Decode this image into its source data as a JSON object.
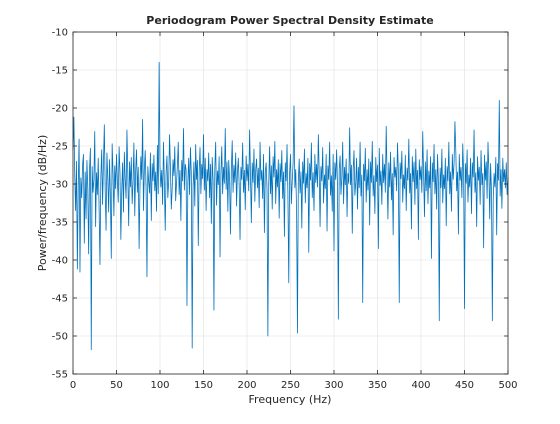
{
  "chart_data": {
    "type": "line",
    "title": "Periodogram Power Spectral Density Estimate",
    "xlabel": "Frequency (Hz)",
    "ylabel": "Power/frequency (dB/Hz)",
    "xlim": [
      0,
      500
    ],
    "ylim": [
      -55,
      -10
    ],
    "xticks": [
      0,
      50,
      100,
      150,
      200,
      250,
      300,
      350,
      400,
      450,
      500
    ],
    "yticks": [
      -55,
      -50,
      -45,
      -40,
      -35,
      -30,
      -25,
      -20,
      -15,
      -10
    ],
    "grid": true,
    "line_color": "#0072BD",
    "series": [
      {
        "x": [
          0,
          1,
          2,
          3,
          4,
          5,
          6,
          7,
          8,
          9,
          10,
          11,
          12,
          13,
          14,
          15,
          16,
          17,
          18,
          19,
          20,
          21,
          22,
          23,
          24,
          25,
          26,
          27,
          28,
          29,
          30,
          31,
          32,
          33,
          34,
          35,
          36,
          37,
          38,
          39,
          40,
          41,
          42,
          43,
          44,
          45,
          46,
          47,
          48,
          49,
          50,
          51,
          52,
          53,
          54,
          55,
          56,
          57,
          58,
          59,
          60,
          61,
          62,
          63,
          64,
          65,
          66,
          67,
          68,
          69,
          70,
          71,
          72,
          73,
          74,
          75,
          76,
          77,
          78,
          79,
          80,
          81,
          82,
          83,
          84,
          85,
          86,
          87,
          88,
          89,
          90,
          91,
          92,
          93,
          94,
          95,
          96,
          97,
          98,
          99,
          100,
          101,
          102,
          103,
          104,
          105,
          106,
          107,
          108,
          109,
          110,
          111,
          112,
          113,
          114,
          115,
          116,
          117,
          118,
          119,
          120,
          121,
          122,
          123,
          124,
          125,
          126,
          127,
          128,
          129,
          130,
          131,
          132,
          133,
          134,
          135,
          136,
          137,
          138,
          139,
          140,
          141,
          142,
          143,
          144,
          145,
          146,
          147,
          148,
          149,
          150,
          151,
          152,
          153,
          154,
          155,
          156,
          157,
          158,
          159,
          160,
          161,
          162,
          163,
          164,
          165,
          166,
          167,
          168,
          169,
          170,
          171,
          172,
          173,
          174,
          175,
          176,
          177,
          178,
          179,
          180,
          181,
          182,
          183,
          184,
          185,
          186,
          187,
          188,
          189,
          190,
          191,
          192,
          193,
          194,
          195,
          196,
          197,
          198,
          199,
          200,
          201,
          202,
          203,
          204,
          205,
          206,
          207,
          208,
          209,
          210,
          211,
          212,
          213,
          214,
          215,
          216,
          217,
          218,
          219,
          220,
          221,
          222,
          223,
          224,
          225,
          226,
          227,
          228,
          229,
          230,
          231,
          232,
          233,
          234,
          235,
          236,
          237,
          238,
          239,
          240,
          241,
          242,
          243,
          244,
          245,
          246,
          247,
          248,
          249,
          250,
          251,
          252,
          253,
          254,
          255,
          256,
          257,
          258,
          259,
          260,
          261,
          262,
          263,
          264,
          265,
          266,
          267,
          268,
          269,
          270,
          271,
          272,
          273,
          274,
          275,
          276,
          277,
          278,
          279,
          280,
          281,
          282,
          283,
          284,
          285,
          286,
          287,
          288,
          289,
          290,
          291,
          292,
          293,
          294,
          295,
          296,
          297,
          298,
          299,
          300,
          301,
          302,
          303,
          304,
          305,
          306,
          307,
          308,
          309,
          310,
          311,
          312,
          313,
          314,
          315,
          316,
          317,
          318,
          319,
          320,
          321,
          322,
          323,
          324,
          325,
          326,
          327,
          328,
          329,
          330,
          331,
          332,
          333,
          334,
          335,
          336,
          337,
          338,
          339,
          340,
          341,
          342,
          343,
          344,
          345,
          346,
          347,
          348,
          349,
          350,
          351,
          352,
          353,
          354,
          355,
          356,
          357,
          358,
          359,
          360,
          361,
          362,
          363,
          364,
          365,
          366,
          367,
          368,
          369,
          370,
          371,
          372,
          373,
          374,
          375,
          376,
          377,
          378,
          379,
          380,
          381,
          382,
          383,
          384,
          385,
          386,
          387,
          388,
          389,
          390,
          391,
          392,
          393,
          394,
          395,
          396,
          397,
          398,
          399,
          400,
          401,
          402,
          403,
          404,
          405,
          406,
          407,
          408,
          409,
          410,
          411,
          412,
          413,
          414,
          415,
          416,
          417,
          418,
          419,
          420,
          421,
          422,
          423,
          424,
          425,
          426,
          427,
          428,
          429,
          430,
          431,
          432,
          433,
          434,
          435,
          436,
          437,
          438,
          439,
          440,
          441,
          442,
          443,
          444,
          445,
          446,
          447,
          448,
          449,
          450,
          451,
          452,
          453,
          454,
          455,
          456,
          457,
          458,
          459,
          460,
          461,
          462,
          463,
          464,
          465,
          466,
          467,
          468,
          469,
          470,
          471,
          472,
          473,
          474,
          475,
          476,
          477,
          478,
          479,
          480,
          481,
          482,
          483,
          484,
          485,
          486,
          487,
          488,
          489,
          490,
          491,
          492,
          493,
          494,
          495,
          496,
          497,
          498,
          499,
          500
        ],
        "y": [
          -25.5,
          -21.2,
          -28.8,
          -33.5,
          -27.0,
          -41.2,
          -30.3,
          -24.1,
          -41.6,
          -29.2,
          -31.8,
          -27.5,
          -26.1,
          -37.8,
          -28.4,
          -34.6,
          -26.9,
          -30.7,
          -39.2,
          -28.1,
          -25.3,
          -51.8,
          -27.7,
          -31.1,
          -29.4,
          -23.1,
          -35.6,
          -28.5,
          -31.4,
          -26.6,
          -33.2,
          -40.6,
          -29.1,
          -25.5,
          -32.7,
          -27.3,
          -22.2,
          -30.8,
          -36.1,
          -25.9,
          -29.3,
          -33.7,
          -26.8,
          -31.6,
          -39.8,
          -24.7,
          -28.5,
          -34.2,
          -27.6,
          -30.6,
          -26.1,
          -29.6,
          -32.4,
          -25.1,
          -28.5,
          -37.3,
          -30.9,
          -27.2,
          -33.7,
          -25.8,
          -29.4,
          -31.9,
          -22.9,
          -28.7,
          -35.5,
          -27.1,
          -30.4,
          -26.5,
          -32.6,
          -29.8,
          -24.6,
          -34.2,
          -28.3,
          -25.5,
          -31.1,
          -27.8,
          -38.5,
          -30.1,
          -26.4,
          -29.4,
          -21.5,
          -33.5,
          -28.1,
          -25.6,
          -30.6,
          -42.2,
          -27.7,
          -29.7,
          -31.2,
          -25.9,
          -34.8,
          -27.3,
          -29.6,
          -26.2,
          -30.9,
          -28.4,
          -33.6,
          -24.9,
          -31.3,
          -14.0,
          -27.7,
          -30.4,
          -28.2,
          -32.7,
          -24.5,
          -29.7,
          -36.1,
          -28.5,
          -26.3,
          -31.8,
          -29.6,
          -23.5,
          -27.9,
          -33.3,
          -30.6,
          -26.8,
          -28.9,
          -25.1,
          -32.2,
          -29.9,
          -27.5,
          -24.5,
          -31.4,
          -28.2,
          -34.8,
          -26.9,
          -29.6,
          -22.7,
          -30.8,
          -27.4,
          -28.1,
          -46.0,
          -29.8,
          -26.6,
          -31.4,
          -25.2,
          -28.7,
          -51.6,
          -30.5,
          -27.1,
          -32.9,
          -24.8,
          -29.4,
          -26.9,
          -38.1,
          -28.5,
          -25.2,
          -31.3,
          -27.4,
          -29.3,
          -23.5,
          -30.8,
          -26.6,
          -33.5,
          -28.1,
          -29.6,
          -25.9,
          -31.8,
          -27.4,
          -35.2,
          -26.5,
          -29.4,
          -46.6,
          -27.9,
          -24.5,
          -32.8,
          -28.3,
          -30.1,
          -26.4,
          -39.6,
          -28.7,
          -25.1,
          -31.3,
          -27.8,
          -29.9,
          -22.7,
          -30.7,
          -27.1,
          -33.6,
          -26.9,
          -29.4,
          -36.6,
          -28.1,
          -24.3,
          -31.1,
          -27.5,
          -29.8,
          -25.9,
          -32.9,
          -28.4,
          -26.6,
          -30.2,
          -37.3,
          -27.8,
          -29.4,
          -24.6,
          -31.1,
          -28.2,
          -33.4,
          -26.3,
          -29.6,
          -27.4,
          -30.9,
          -22.9,
          -28.9,
          -35.1,
          -27.2,
          -29.8,
          -25.4,
          -32.3,
          -28.1,
          -26.7,
          -30.5,
          -27.9,
          -33.1,
          -24.5,
          -29.5,
          -28.2,
          -31.9,
          -26.1,
          -36.4,
          -28.5,
          -27.2,
          -30.7,
          -50.0,
          -29.9,
          -25.1,
          -31.3,
          -27.6,
          -33.3,
          -26.4,
          -29.1,
          -24.4,
          -32.6,
          -28.1,
          -30.4,
          -26.8,
          -34.5,
          -27.3,
          -29.7,
          -25.6,
          -31.9,
          -28.4,
          -36.9,
          -27.2,
          -29.6,
          -24.8,
          -31.1,
          -43.0,
          -28.5,
          -26.1,
          -32.6,
          -29.6,
          -27.2,
          -19.7,
          -30.5,
          -28.1,
          -33.6,
          -49.6,
          -29.6,
          -26.7,
          -31.2,
          -28.4,
          -35.8,
          -27.1,
          -29.9,
          -25.4,
          -32.5,
          -28.6,
          -30.5,
          -26.6,
          -39.0,
          -27.3,
          -29.5,
          -24.6,
          -31.8,
          -28.5,
          -33.5,
          -26.1,
          -29.8,
          -27.4,
          -30.4,
          -23.5,
          -28.5,
          -35.6,
          -27.7,
          -29.6,
          -25.2,
          -32.5,
          -28.8,
          -30.6,
          -26.1,
          -36.2,
          -27.6,
          -29.4,
          -24.5,
          -31.5,
          -28.9,
          -33.6,
          -26.1,
          -38.8,
          -27.2,
          -29.4,
          -25.5,
          -30.1,
          -47.8,
          -28.1,
          -26.3,
          -31.4,
          -29.1,
          -24.5,
          -32.6,
          -27.8,
          -30.1,
          -26.7,
          -34.3,
          -28.6,
          -29.9,
          -22.6,
          -30.1,
          -27.5,
          -36.5,
          -28.2,
          -25.6,
          -31.5,
          -29.9,
          -26.6,
          -33.3,
          -27.8,
          -30.5,
          -24.5,
          -31.6,
          -28.8,
          -45.6,
          -27.4,
          -29.6,
          -25.3,
          -32.4,
          -28.1,
          -30.8,
          -26.7,
          -35.4,
          -27.1,
          -29.8,
          -24.4,
          -31.6,
          -28.9,
          -33.9,
          -26.5,
          -29.7,
          -27.5,
          -38.5,
          -25.3,
          -30.2,
          -28.3,
          -32.7,
          -26.1,
          -29.8,
          -27.4,
          -31.1,
          -22.4,
          -28.9,
          -34.6,
          -27.2,
          -30.4,
          -25.8,
          -32.1,
          -28.6,
          -36.7,
          -26.5,
          -29.1,
          -27.8,
          -30.9,
          -24.6,
          -28.5,
          -45.6,
          -27.2,
          -29.3,
          -25.7,
          -32.4,
          -28.8,
          -30.6,
          -26.2,
          -33.5,
          -27.9,
          -29.5,
          -24.1,
          -31.2,
          -28.6,
          -35.9,
          -26.4,
          -29.7,
          -27.1,
          -32.7,
          -25.4,
          -30.6,
          -28.2,
          -37.3,
          -26.8,
          -29.4,
          -27.7,
          -31.1,
          -23.1,
          -28.7,
          -34.3,
          -27.1,
          -30.9,
          -25.5,
          -32.6,
          -28.3,
          -30.5,
          -26.4,
          -39.8,
          -27.2,
          -29.7,
          -24.8,
          -31.3,
          -28.1,
          -33.3,
          -26.1,
          -29.6,
          -48.0,
          -27.9,
          -30.5,
          -25.4,
          -32.5,
          -28.8,
          -30.6,
          -26.6,
          -35.5,
          -27.7,
          -29.6,
          -24.5,
          -31.3,
          -28.4,
          -33.6,
          -26.1,
          -29.4,
          -27.3,
          -21.8,
          -25.7,
          -30.9,
          -28.4,
          -36.6,
          -26.1,
          -29.5,
          -27.8,
          -31.8,
          -24.7,
          -28.5,
          -46.4,
          -27.3,
          -29.9,
          -25.5,
          -32.4,
          -28.8,
          -30.4,
          -26.6,
          -33.9,
          -27.2,
          -29.1,
          -22.9,
          -31.1,
          -28.5,
          -35.6,
          -26.4,
          -29.5,
          -27.8,
          -32.7,
          -25.6,
          -30.1,
          -28.6,
          -38.4,
          -26.2,
          -29.5,
          -27.1,
          -31.9,
          -24.5,
          -28.2,
          -34.6,
          -27.3,
          -30.8,
          -48.0,
          -32.1,
          -28.6,
          -30.4,
          -26.5,
          -36.7,
          -27.3,
          -29.5,
          -19.0,
          -31.6,
          -28.1,
          -33.2,
          -26.6,
          -29.7,
          -28.1,
          -30.5,
          -27.2,
          -31.4,
          -29.1
        ]
      }
    ]
  }
}
